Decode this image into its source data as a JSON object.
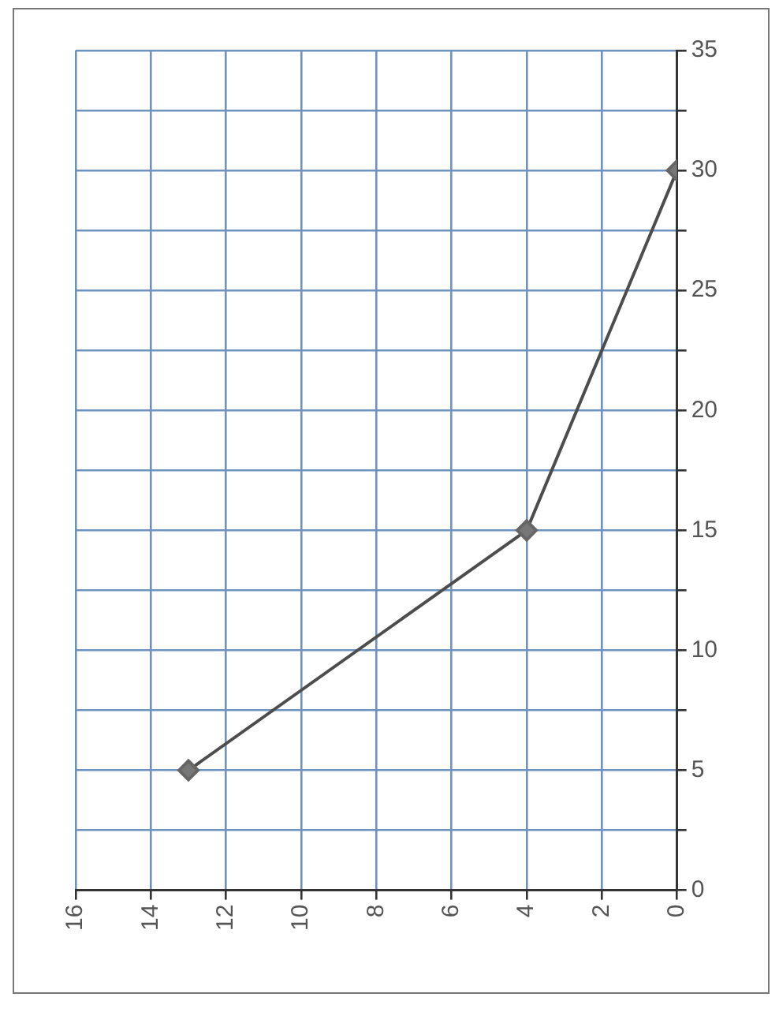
{
  "chart_data": {
    "type": "line",
    "x": [
      13,
      4,
      0
    ],
    "series": [
      {
        "color": "#4d4d4d",
        "values": [
          5,
          15,
          30
        ]
      }
    ],
    "xlim": [
      16,
      0
    ],
    "xticks": [
      0,
      2,
      4,
      6,
      8,
      10,
      12,
      14,
      16
    ],
    "ylim": [
      0,
      35
    ],
    "yticks": [
      0,
      {
        "value": 2.5,
        "label": null
      },
      5,
      {
        "value": 7.5,
        "label": null
      },
      10,
      {
        "value": 12.5,
        "label": null
      },
      15,
      {
        "value": 17.5,
        "label": null
      },
      20,
      {
        "value": 22.5,
        "label": null
      },
      25,
      {
        "value": 27.5,
        "label": null
      },
      30,
      {
        "value": 32.5,
        "label": null
      },
      35
    ],
    "grid": true,
    "marker": "diamond",
    "line_style": "solid"
  }
}
